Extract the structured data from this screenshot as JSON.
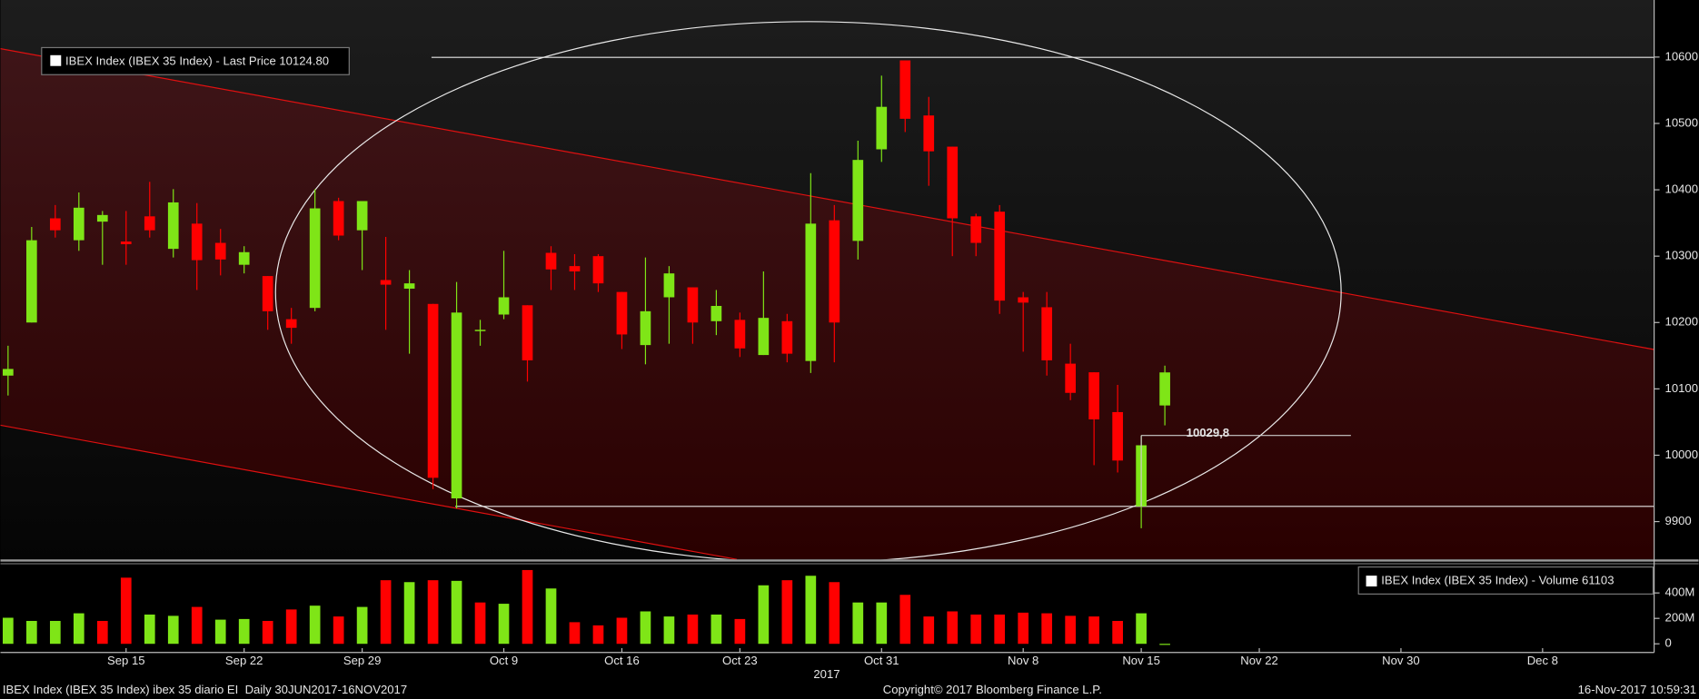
{
  "chart_data": {
    "type": "candlestick",
    "categories": [
      null,
      null,
      null,
      null,
      null,
      "Sep 15",
      null,
      null,
      null,
      null,
      "Sep 22",
      null,
      null,
      null,
      null,
      "Sep 29",
      null,
      null,
      null,
      null,
      null,
      "Oct 9",
      null,
      null,
      null,
      null,
      "Oct 16",
      null,
      null,
      null,
      null,
      "Oct 23",
      null,
      null,
      null,
      null,
      null,
      "Oct 31",
      null,
      null,
      null,
      null,
      null,
      "Nov 8",
      null,
      null,
      null,
      null,
      "Nov 15",
      null,
      null,
      null,
      null,
      "Nov 22",
      null,
      null,
      null,
      null,
      null,
      "Nov 30",
      null,
      null,
      null,
      null,
      null,
      "Dec 8",
      null,
      null,
      null,
      null
    ],
    "series": [
      {
        "name": "IBEX Index (IBEX 35 Index) - Last Price 10124.80",
        "open": [
          10120,
          10200,
          10357,
          10324,
          10352,
          10322,
          10360,
          10311,
          10349,
          10320,
          10287,
          10270,
          10205,
          10222,
          10383,
          10339,
          10264,
          10251,
          10228,
          9935,
          10187,
          10212,
          10226,
          10305,
          10285,
          10300,
          10246,
          10166,
          10238,
          10253,
          10202,
          10204,
          10151,
          10202,
          10142,
          10354,
          10323,
          10461,
          10595,
          10512,
          10465,
          10360,
          10367,
          10238,
          10223,
          10138,
          10125,
          10065,
          9923,
          10075,
          null,
          null,
          null,
          null,
          null,
          null,
          null,
          null,
          null,
          null,
          null,
          null,
          null,
          null,
          null,
          null,
          null,
          null,
          null,
          null
        ],
        "high": [
          10165,
          10344,
          10377,
          10396,
          10368,
          10368,
          10412,
          10401,
          10380,
          10341,
          10315,
          10270,
          10222,
          10401,
          10388,
          10383,
          10329,
          10279,
          10228,
          10261,
          10204,
          10308,
          10226,
          10315,
          10303,
          10303,
          10246,
          10298,
          10285,
          10253,
          10249,
          10215,
          10277,
          10213,
          10425,
          10377,
          10474,
          10572,
          10595,
          10540,
          10465,
          10364,
          10377,
          10246,
          10246,
          10168,
          10125,
          10106,
          10029.8,
          10135,
          null,
          null,
          null,
          null,
          null,
          null,
          null,
          null,
          null,
          null,
          null,
          null,
          null,
          null,
          null,
          null,
          null,
          null,
          null,
          null
        ],
        "low": [
          10090,
          10200,
          10328,
          10308,
          10287,
          10287,
          10328,
          10298,
          10249,
          10271,
          10274,
          10189,
          10168,
          10217,
          10324,
          10279,
          10189,
          10153,
          9949,
          9920,
          10165,
          10205,
          10111,
          10249,
          10249,
          10246,
          10160,
          10137,
          10168,
          10168,
          10181,
          10148,
          10151,
          10140,
          10124,
          10140,
          10295,
          10442,
          10487,
          10406,
          10300,
          10300,
          10213,
          10156,
          10120,
          10083,
          9985,
          9974,
          9890,
          10045,
          null,
          null,
          null,
          null,
          null,
          null,
          null,
          null,
          null,
          null,
          null,
          null,
          null,
          null,
          null,
          null,
          null,
          null,
          null,
          null
        ],
        "close": [
          10130,
          10324,
          10339,
          10373,
          10362,
          10318,
          10339,
          10381,
          10294,
          10295,
          10306,
          10217,
          10192,
          10372,
          10331,
          10383,
          10257,
          10259,
          9966,
          10215,
          10189,
          10238,
          10143,
          10280,
          10277,
          10259,
          10182,
          10217,
          10274,
          10200,
          10225,
          10161,
          10207,
          10153,
          10349,
          10200,
          10445,
          10525,
          10507,
          10458,
          10357,
          10320,
          10233,
          10230,
          10143,
          10094,
          10054,
          9992,
          10015,
          10124.8,
          null,
          null,
          null,
          null,
          null,
          null,
          null,
          null,
          null,
          null,
          null,
          null,
          null,
          null,
          null,
          null,
          null,
          null,
          null,
          null
        ]
      }
    ],
    "up_color": "#7fe517",
    "down_color": "#ff0000",
    "ylim": [
      9843,
      10686
    ],
    "yticks": [
      9900,
      10000,
      10100,
      10200,
      10300,
      10400,
      10500,
      10600
    ],
    "volume": {
      "type": "bar",
      "name": "IBEX Index (IBEX 35 Index) - Volume 61103",
      "values": [
        205000000,
        180000000,
        180000000,
        240000000,
        180000000,
        520000000,
        230000000,
        220000000,
        290000000,
        190000000,
        195000000,
        180000000,
        270000000,
        300000000,
        215000000,
        290000000,
        500000000,
        485000000,
        500000000,
        495000000,
        325000000,
        315000000,
        580000000,
        435000000,
        170000000,
        145000000,
        205000000,
        255000000,
        215000000,
        230000000,
        230000000,
        195000000,
        460000000,
        500000000,
        535000000,
        485000000,
        325000000,
        325000000,
        385000000,
        215000000,
        255000000,
        230000000,
        230000000,
        245000000,
        240000000,
        220000000,
        215000000,
        180000000,
        240000000,
        61103,
        null,
        null,
        null,
        null,
        null,
        null,
        null,
        null,
        null,
        null,
        null,
        null,
        null,
        null,
        null,
        null,
        null,
        null,
        null,
        null
      ],
      "ylim": [
        -68000000,
        621000000
      ],
      "yticks": [
        0,
        {
          "value": 200000000,
          "label": "200M"
        },
        {
          "value": 400000000,
          "label": "400M"
        }
      ]
    },
    "annotation": {
      "text": "10029,8",
      "value": 10029.8
    },
    "year_label": "2017"
  },
  "footer": {
    "left": "IBEX Index (IBEX 35 Index) ibex 35 diario EI  Daily 30JUN2017-16NOV2017",
    "center": "Copyright© 2017 Bloomberg Finance L.P.",
    "right": "16-Nov-2017 10:59:31"
  }
}
